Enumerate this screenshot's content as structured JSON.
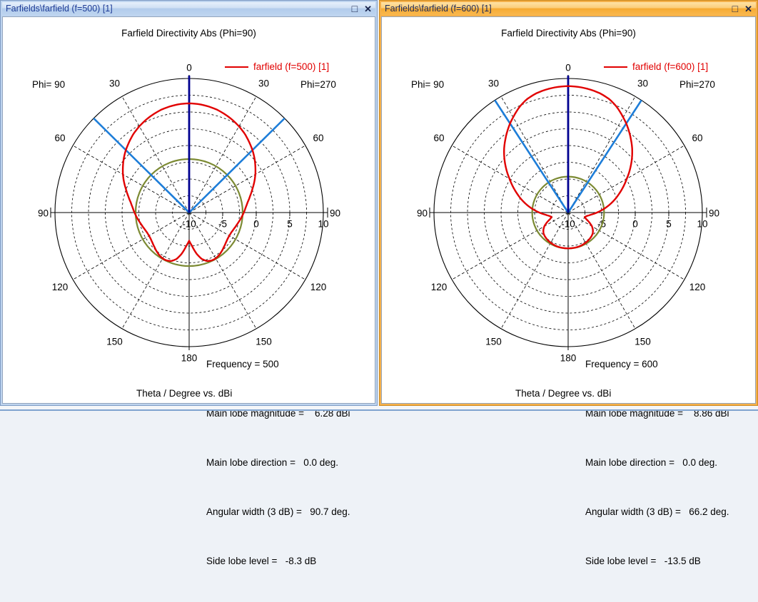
{
  "buttons": {
    "maximize": "□",
    "close": "✕"
  },
  "windows": [
    {
      "title": "Farfields\\farfield (f=500) [1]",
      "state": "inactive",
      "plot_title": "Farfield Directivity Abs (Phi=90)",
      "legend_label": "farfield (f=500) [1]",
      "phi_left_label": "Phi= 90",
      "phi_right_label": "Phi=270",
      "axis_caption": "Theta / Degree vs. dBi",
      "stats_lines": {
        "frequency": "Frequency = 500",
        "main_lobe_magnitude": "Main lobe magnitude =    6.28 dBi",
        "main_lobe_direction": "Main lobe direction =   0.0 deg.",
        "angular_width": "Angular width (3 dB) =   90.7 deg.",
        "side_lobe_level": "Side lobe level =   -8.3 dB"
      },
      "chart_data": {
        "type": "polar",
        "title": "Farfield Directivity Abs (Phi=90)",
        "series_name": "farfield (f=500) [1]",
        "frequency": 500,
        "angle_unit": "Theta / Degree",
        "value_unit": "dBi",
        "radial_range": [
          -10,
          10
        ],
        "radial_ticks": [
          -10,
          -5,
          0,
          5,
          10
        ],
        "ring_step_db": 2.5,
        "angle_labels": [
          0,
          30,
          60,
          90,
          120,
          150,
          180
        ],
        "main_lobe_magnitude_dbi": 6.28,
        "main_lobe_direction_deg": 0.0,
        "angular_width_3db_deg": 90.7,
        "side_lobe_level_db": -8.3,
        "pattern_theta_dbi": [
          [
            0,
            6.28
          ],
          [
            5,
            6.24
          ],
          [
            10,
            6.1
          ],
          [
            15,
            5.9
          ],
          [
            20,
            5.6
          ],
          [
            25,
            5.25
          ],
          [
            30,
            4.85
          ],
          [
            35,
            4.4
          ],
          [
            40,
            3.85
          ],
          [
            45,
            3.3
          ],
          [
            50,
            2.7
          ],
          [
            55,
            2.05
          ],
          [
            60,
            1.4
          ],
          [
            65,
            0.7
          ],
          [
            70,
            0.0
          ],
          [
            75,
            -0.6
          ],
          [
            80,
            -1.15
          ],
          [
            85,
            -1.55
          ],
          [
            90,
            -1.85
          ],
          [
            95,
            -2.15
          ],
          [
            100,
            -2.45
          ],
          [
            105,
            -2.7
          ],
          [
            110,
            -2.9
          ],
          [
            115,
            -3.05
          ],
          [
            120,
            -3.1
          ],
          [
            125,
            -3.05
          ],
          [
            130,
            -2.9
          ],
          [
            135,
            -2.7
          ],
          [
            140,
            -2.45
          ],
          [
            145,
            -2.25
          ],
          [
            150,
            -2.1
          ],
          [
            155,
            -2.1
          ],
          [
            160,
            -2.3
          ],
          [
            165,
            -2.85
          ],
          [
            170,
            -3.8
          ],
          [
            175,
            -5.0
          ],
          [
            180,
            -5.8
          ]
        ]
      }
    },
    {
      "title": "Farfields\\farfield (f=600) [1]",
      "state": "active",
      "plot_title": "Farfield Directivity Abs (Phi=90)",
      "legend_label": "farfield (f=600) [1]",
      "phi_left_label": "Phi= 90",
      "phi_right_label": "Phi=270",
      "axis_caption": "Theta / Degree vs. dBi",
      "stats_lines": {
        "frequency": "Frequency = 600",
        "main_lobe_magnitude": "Main lobe magnitude =    8.86 dBi",
        "main_lobe_direction": "Main lobe direction =   0.0 deg.",
        "angular_width": "Angular width (3 dB) =   66.2 deg.",
        "side_lobe_level": "Side lobe level =   -13.5 dB"
      },
      "chart_data": {
        "type": "polar",
        "title": "Farfield Directivity Abs (Phi=90)",
        "series_name": "farfield (f=600) [1]",
        "frequency": 600,
        "angle_unit": "Theta / Degree",
        "value_unit": "dBi",
        "radial_range": [
          -10,
          10
        ],
        "radial_ticks": [
          -10,
          -5,
          0,
          5,
          10
        ],
        "ring_step_db": 2.5,
        "angle_labels": [
          0,
          30,
          60,
          90,
          120,
          150,
          180
        ],
        "main_lobe_magnitude_dbi": 8.86,
        "main_lobe_direction_deg": 0.0,
        "angular_width_3db_deg": 66.2,
        "side_lobe_level_db": -13.5,
        "pattern_theta_dbi": [
          [
            0,
            8.86
          ],
          [
            5,
            8.8
          ],
          [
            10,
            8.65
          ],
          [
            15,
            8.4
          ],
          [
            20,
            8.0
          ],
          [
            25,
            7.3
          ],
          [
            30,
            6.4
          ],
          [
            33.1,
            5.86
          ],
          [
            35,
            5.5
          ],
          [
            40,
            4.5
          ],
          [
            45,
            3.5
          ],
          [
            50,
            2.4
          ],
          [
            55,
            1.25
          ],
          [
            60,
            0.1
          ],
          [
            65,
            -0.95
          ],
          [
            70,
            -1.95
          ],
          [
            75,
            -2.9
          ],
          [
            80,
            -3.85
          ],
          [
            85,
            -4.8
          ],
          [
            90,
            -5.7
          ],
          [
            95,
            -6.55
          ],
          [
            100,
            -7.15
          ],
          [
            105,
            -7.45
          ],
          [
            110,
            -7.15
          ],
          [
            115,
            -6.5
          ],
          [
            120,
            -5.9
          ],
          [
            125,
            -5.5
          ],
          [
            130,
            -5.2
          ],
          [
            135,
            -5.05
          ],
          [
            140,
            -4.95
          ],
          [
            145,
            -4.87
          ],
          [
            150,
            -4.8
          ],
          [
            155,
            -4.75
          ],
          [
            160,
            -4.7
          ],
          [
            165,
            -4.68
          ],
          [
            170,
            -4.67
          ],
          [
            175,
            -4.66
          ],
          [
            180,
            -4.66
          ]
        ]
      }
    }
  ],
  "colors": {
    "curve": "#e10000",
    "side_lobe_circle": "#7c8a33",
    "main_lobe_line": "#000090",
    "angular_width_lines": "#1d7dd8",
    "grid": "#000000"
  }
}
